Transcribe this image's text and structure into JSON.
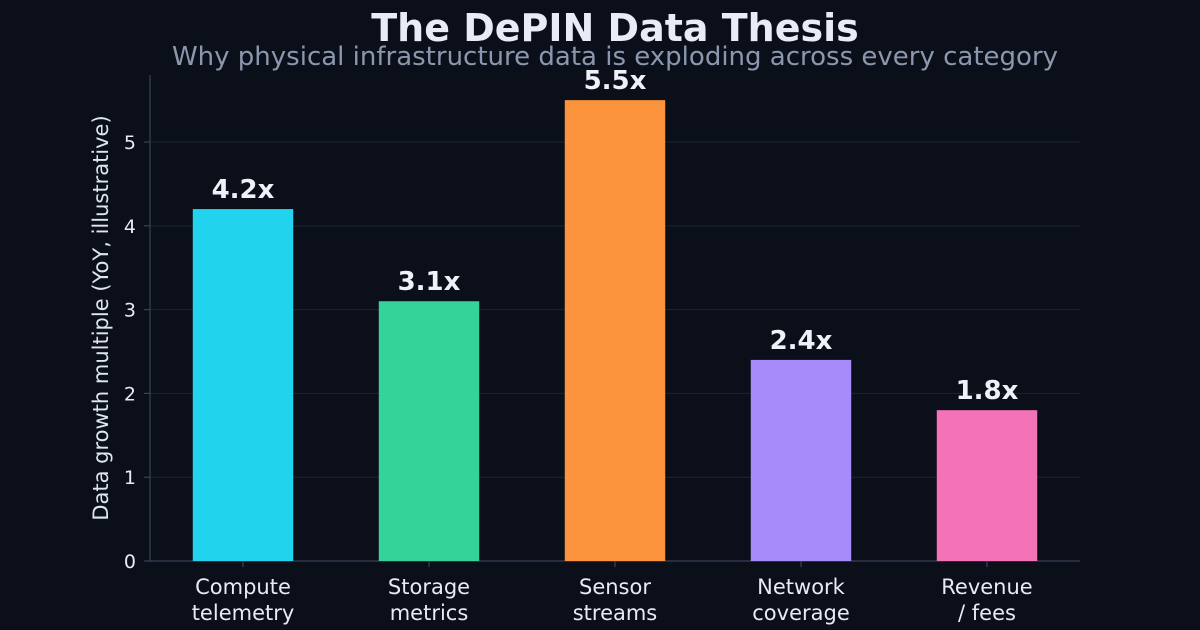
{
  "chart_data": {
    "type": "bar",
    "title": "The DePIN Data Thesis",
    "subtitle": "Why physical infrastructure data is exploding across every category",
    "xlabel": "",
    "ylabel": "Data growth multiple (YoY, illustrative)",
    "ylim": [
      0,
      5.8
    ],
    "yticks": [
      0,
      1,
      2,
      3,
      4,
      5
    ],
    "grid": true,
    "categories": [
      [
        "Compute",
        "telemetry"
      ],
      [
        "Storage",
        "metrics"
      ],
      [
        "Sensor",
        "streams"
      ],
      [
        "Network",
        "coverage"
      ],
      [
        "Revenue",
        "/ fees"
      ]
    ],
    "values": [
      4.2,
      3.1,
      5.5,
      2.4,
      1.8
    ],
    "value_labels": [
      "4.2x",
      "3.1x",
      "5.5x",
      "2.4x",
      "1.8x"
    ],
    "colors": [
      "#22d3ee",
      "#34d399",
      "#fb923c",
      "#a78bfa",
      "#f472b6"
    ]
  }
}
